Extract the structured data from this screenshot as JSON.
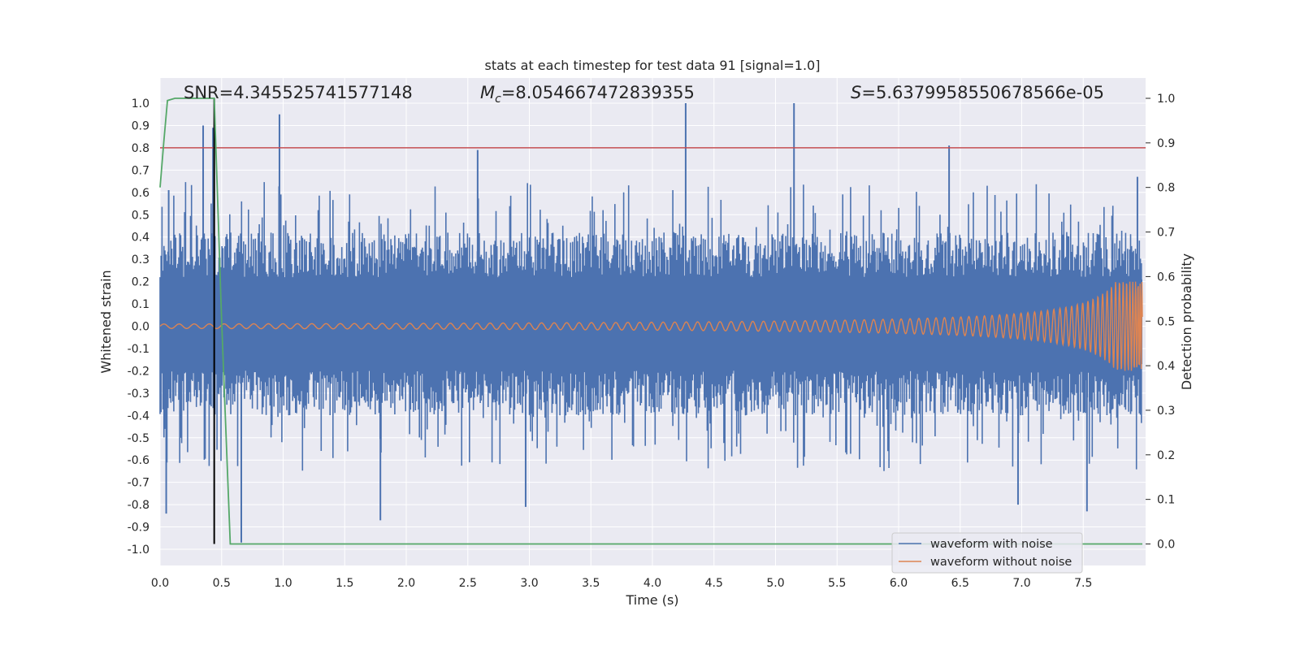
{
  "chart_data": {
    "type": "line",
    "title": "stats at each timestep for test data 91 [signal=1.0]",
    "xlabel": "Time (s)",
    "ylabel": "Whitened strain",
    "y2label": "Detection probability",
    "xlim": [
      0.0,
      8.0
    ],
    "ylim": [
      -1.1,
      1.1
    ],
    "y2lim": [
      -0.05,
      1.05
    ],
    "x_ticks": [
      "0.0",
      "0.5",
      "1.0",
      "1.5",
      "2.0",
      "2.5",
      "3.0",
      "3.5",
      "4.0",
      "4.5",
      "5.0",
      "5.5",
      "6.0",
      "6.5",
      "7.0",
      "7.5"
    ],
    "y_ticks": [
      "1.0",
      "0.9",
      "0.8",
      "0.7",
      "0.6",
      "0.5",
      "0.4",
      "0.3",
      "0.2",
      "0.1",
      "0.0",
      "-0.1",
      "-0.2",
      "-0.3",
      "-0.4",
      "-0.5",
      "-0.6",
      "-0.7",
      "-0.8",
      "-0.9",
      "-1.0"
    ],
    "y2_ticks": [
      "1.0",
      "0.9",
      "0.8",
      "0.7",
      "0.6",
      "0.5",
      "0.4",
      "0.3",
      "0.2",
      "0.1",
      "0.0"
    ],
    "annotations": {
      "snr": "SNR=4.345525741577148",
      "mc_symbol": "M",
      "mc_sub": "c",
      "mc_value": "=8.054667472839355",
      "s_symbol": "S",
      "s_value": "=5.6379958550678566e-05"
    },
    "threshold": {
      "value": 0.8,
      "color": "#c44e52"
    },
    "detection_time": {
      "x": 0.44,
      "color": "#000000"
    },
    "series": [
      {
        "name": "waveform with noise",
        "color": "#4c72b0",
        "description_points": "dense noise, envelope approx ±0.3 to ±0.5 with spikes",
        "spikes": [
          [
            0.05,
            -0.84
          ],
          [
            0.07,
            0.61
          ],
          [
            0.35,
            0.9
          ],
          [
            0.43,
            0.89
          ],
          [
            0.66,
            -0.97
          ],
          [
            0.97,
            0.95
          ],
          [
            1.79,
            -0.87
          ],
          [
            2.58,
            0.79
          ],
          [
            2.97,
            -0.81
          ],
          [
            4.27,
            1.0
          ],
          [
            5.15,
            1.0
          ],
          [
            6.41,
            0.81
          ],
          [
            6.97,
            -0.8
          ],
          [
            7.53,
            -0.83
          ],
          [
            7.94,
            0.67
          ]
        ]
      },
      {
        "name": "waveform without noise",
        "color": "#dd8452",
        "chirp": {
          "start_amp": 0.01,
          "end_amp": 0.2,
          "end_time": 7.98
        }
      },
      {
        "name": "detection probability",
        "color": "#55a868",
        "axis": "right",
        "x": [
          0.0,
          0.03,
          0.06,
          0.12,
          0.2,
          0.3,
          0.44,
          0.5,
          0.57,
          7.98
        ],
        "y": [
          0.8,
          0.9,
          0.995,
          1.0,
          1.0,
          1.0,
          1.0,
          0.5,
          0.0,
          0.0
        ]
      }
    ],
    "legend": {
      "position": "lower-right",
      "entries": [
        "waveform with noise",
        "waveform without noise"
      ]
    },
    "grid": true,
    "background": "#eaeaf2"
  }
}
